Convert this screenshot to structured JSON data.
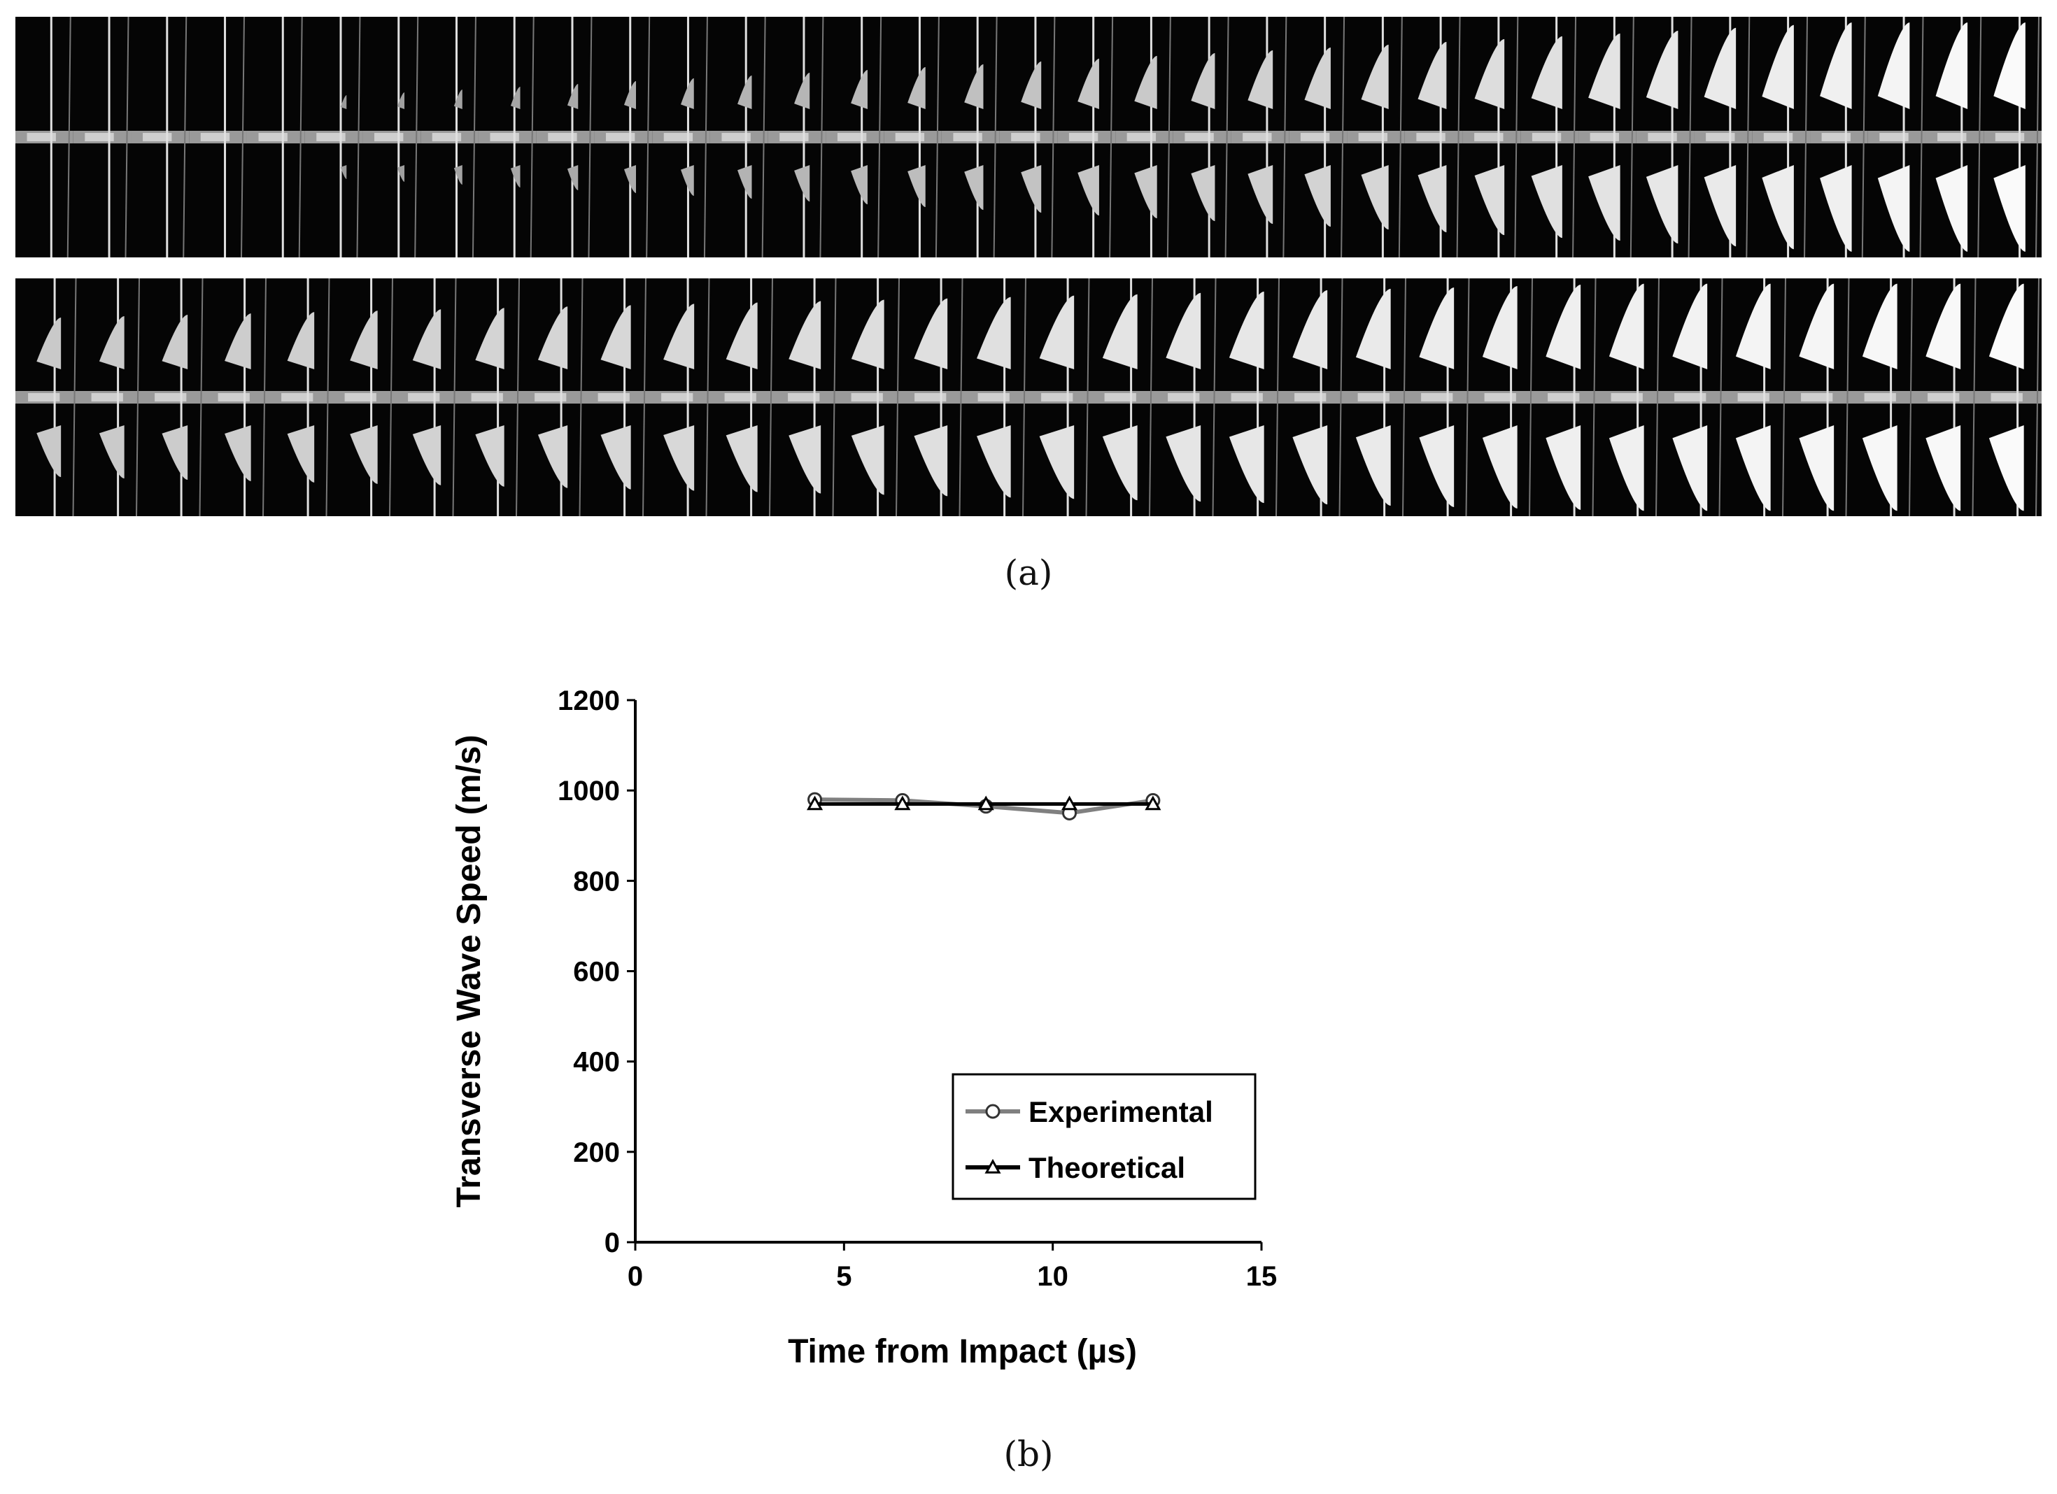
{
  "panel_a": {
    "caption": "(a)",
    "rows": [
      {
        "frames": 35
      },
      {
        "frames": 32
      }
    ]
  },
  "panel_b": {
    "caption": "(b)"
  },
  "chart_data": {
    "type": "line",
    "title": "",
    "xlabel": "Time from Impact (µs)",
    "ylabel": "Transverse Wave Speed (m/s)",
    "xlim": [
      0,
      15
    ],
    "ylim": [
      0,
      1200
    ],
    "xticks": [
      0,
      5,
      10,
      15
    ],
    "yticks": [
      0,
      200,
      400,
      600,
      800,
      1000,
      1200
    ],
    "grid": false,
    "legend_position": "bottom-right",
    "series": [
      {
        "name": "Experimental",
        "marker": "circle",
        "color": "#808080",
        "x": [
          4.3,
          6.4,
          8.4,
          10.4,
          12.4
        ],
        "y": [
          980,
          978,
          965,
          950,
          978
        ]
      },
      {
        "name": "Theoretical",
        "marker": "triangle",
        "color": "#000000",
        "x": [
          4.3,
          6.4,
          8.4,
          10.4,
          12.4
        ],
        "y": [
          970,
          970,
          970,
          970,
          970
        ]
      }
    ]
  }
}
